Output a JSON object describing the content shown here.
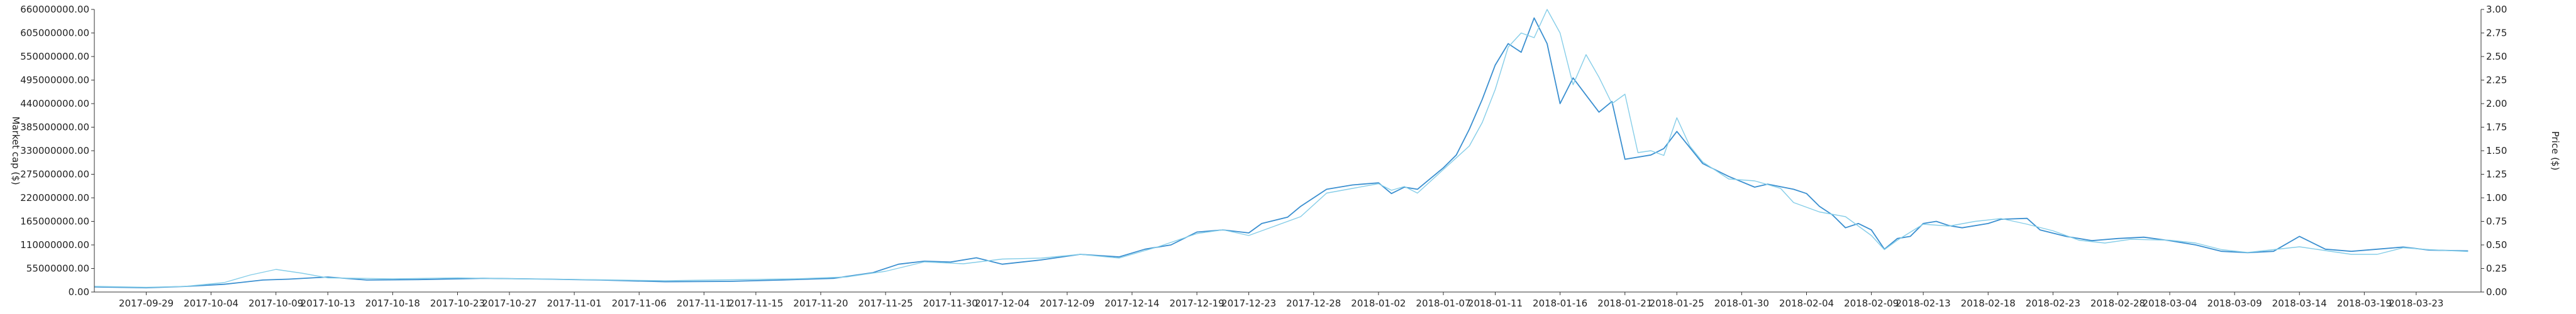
{
  "chart_data": {
    "type": "line",
    "title": "",
    "ylabel_left": "Market cap ($)",
    "ylabel_right": "Price ($)",
    "xlabel": "",
    "x_tick_labels": [
      "2017-09-29",
      "2017-10-04",
      "2017-10-09",
      "2017-10-13",
      "2017-10-18",
      "2017-10-23",
      "2017-10-27",
      "2017-11-01",
      "2017-11-06",
      "2017-11-11",
      "2017-11-15",
      "2017-11-20",
      "2017-11-25",
      "2017-11-30",
      "2017-12-04",
      "2017-12-09",
      "2017-12-14",
      "2017-12-19",
      "2017-12-23",
      "2017-12-28",
      "2018-01-02",
      "2018-01-07",
      "2018-01-11",
      "2018-01-16",
      "2018-01-21",
      "2018-01-25",
      "2018-01-30",
      "2018-02-04",
      "2018-02-09",
      "2018-02-13",
      "2018-02-18",
      "2018-02-23",
      "2018-02-28",
      "2018-03-04",
      "2018-03-09",
      "2018-03-14",
      "2018-03-19",
      "2018-03-23"
    ],
    "y_left_ticks": [
      "0.00",
      "55000000.00",
      "110000000.00",
      "165000000.00",
      "220000000.00",
      "275000000.00",
      "330000000.00",
      "385000000.00",
      "440000000.00",
      "495000000.00",
      "550000000.00",
      "605000000.00",
      "660000000.00"
    ],
    "y_right_ticks": [
      "0.00",
      "0.25",
      "0.50",
      "0.75",
      "1.00",
      "1.25",
      "1.50",
      "1.75",
      "2.00",
      "2.25",
      "2.50",
      "2.75",
      "3.00"
    ],
    "x_range": [
      "2017-09-25",
      "2018-03-28"
    ],
    "y_left_range": [
      0,
      660000000
    ],
    "y_right_range": [
      0,
      3.0
    ],
    "grid": false,
    "legend": "none",
    "series": [
      {
        "axis": "left",
        "color": "#3a8fd0",
        "points": [
          [
            "2017-09-25",
            12000000
          ],
          [
            "2017-09-29",
            10000000
          ],
          [
            "2017-10-02",
            13000000
          ],
          [
            "2017-10-05",
            18000000
          ],
          [
            "2017-10-08",
            28000000
          ],
          [
            "2017-10-10",
            30000000
          ],
          [
            "2017-10-13",
            35000000
          ],
          [
            "2017-10-16",
            28000000
          ],
          [
            "2017-10-20",
            29000000
          ],
          [
            "2017-10-25",
            32000000
          ],
          [
            "2017-10-30",
            30000000
          ],
          [
            "2017-11-03",
            28000000
          ],
          [
            "2017-11-08",
            24000000
          ],
          [
            "2017-11-13",
            25000000
          ],
          [
            "2017-11-17",
            28000000
          ],
          [
            "2017-11-21",
            32000000
          ],
          [
            "2017-11-24",
            45000000
          ],
          [
            "2017-11-26",
            65000000
          ],
          [
            "2017-11-28",
            72000000
          ],
          [
            "2017-11-30",
            70000000
          ],
          [
            "2017-12-02",
            80000000
          ],
          [
            "2017-12-04",
            65000000
          ],
          [
            "2017-12-07",
            75000000
          ],
          [
            "2017-12-10",
            88000000
          ],
          [
            "2017-12-13",
            82000000
          ],
          [
            "2017-12-15",
            100000000
          ],
          [
            "2017-12-17",
            110000000
          ],
          [
            "2017-12-19",
            140000000
          ],
          [
            "2017-12-21",
            145000000
          ],
          [
            "2017-12-23",
            138000000
          ],
          [
            "2017-12-24",
            160000000
          ],
          [
            "2017-12-26",
            175000000
          ],
          [
            "2017-12-27",
            200000000
          ],
          [
            "2017-12-29",
            240000000
          ],
          [
            "2017-12-31",
            250000000
          ],
          [
            "2018-01-02",
            255000000
          ],
          [
            "2018-01-03",
            230000000
          ],
          [
            "2018-01-04",
            245000000
          ],
          [
            "2018-01-05",
            240000000
          ],
          [
            "2018-01-06",
            265000000
          ],
          [
            "2018-01-07",
            290000000
          ],
          [
            "2018-01-08",
            320000000
          ],
          [
            "2018-01-09",
            380000000
          ],
          [
            "2018-01-10",
            450000000
          ],
          [
            "2018-01-11",
            530000000
          ],
          [
            "2018-01-12",
            580000000
          ],
          [
            "2018-01-13",
            560000000
          ],
          [
            "2018-01-14",
            640000000
          ],
          [
            "2018-01-15",
            580000000
          ],
          [
            "2018-01-16",
            440000000
          ],
          [
            "2018-01-17",
            500000000
          ],
          [
            "2018-01-18",
            460000000
          ],
          [
            "2018-01-19",
            420000000
          ],
          [
            "2018-01-20",
            445000000
          ],
          [
            "2018-01-21",
            310000000
          ],
          [
            "2018-01-23",
            320000000
          ],
          [
            "2018-01-24",
            335000000
          ],
          [
            "2018-01-25",
            375000000
          ],
          [
            "2018-01-27",
            300000000
          ],
          [
            "2018-01-29",
            270000000
          ],
          [
            "2018-01-31",
            245000000
          ],
          [
            "2018-02-01",
            252000000
          ],
          [
            "2018-02-03",
            240000000
          ],
          [
            "2018-02-04",
            230000000
          ],
          [
            "2018-02-05",
            200000000
          ],
          [
            "2018-02-06",
            180000000
          ],
          [
            "2018-02-07",
            150000000
          ],
          [
            "2018-02-08",
            160000000
          ],
          [
            "2018-02-09",
            145000000
          ],
          [
            "2018-02-10",
            100000000
          ],
          [
            "2018-02-11",
            125000000
          ],
          [
            "2018-02-12",
            130000000
          ],
          [
            "2018-02-13",
            160000000
          ],
          [
            "2018-02-14",
            165000000
          ],
          [
            "2018-02-15",
            155000000
          ],
          [
            "2018-02-16",
            150000000
          ],
          [
            "2018-02-18",
            160000000
          ],
          [
            "2018-02-19",
            170000000
          ],
          [
            "2018-02-21",
            172000000
          ],
          [
            "2018-02-22",
            145000000
          ],
          [
            "2018-02-24",
            130000000
          ],
          [
            "2018-02-26",
            120000000
          ],
          [
            "2018-02-28",
            125000000
          ],
          [
            "2018-03-02",
            128000000
          ],
          [
            "2018-03-04",
            120000000
          ],
          [
            "2018-03-06",
            110000000
          ],
          [
            "2018-03-08",
            95000000
          ],
          [
            "2018-03-10",
            92000000
          ],
          [
            "2018-03-12",
            95000000
          ],
          [
            "2018-03-14",
            130000000
          ],
          [
            "2018-03-16",
            100000000
          ],
          [
            "2018-03-18",
            95000000
          ],
          [
            "2018-03-20",
            100000000
          ],
          [
            "2018-03-22",
            105000000
          ],
          [
            "2018-03-24",
            98000000
          ],
          [
            "2018-03-27",
            96000000
          ]
        ]
      },
      {
        "axis": "right",
        "color": "#85cde8",
        "points": [
          [
            "2017-09-25",
            0.06
          ],
          [
            "2017-09-29",
            0.05
          ],
          [
            "2017-10-02",
            0.06
          ],
          [
            "2017-10-05",
            0.1
          ],
          [
            "2017-10-07",
            0.18
          ],
          [
            "2017-10-09",
            0.24
          ],
          [
            "2017-10-11",
            0.2
          ],
          [
            "2017-10-13",
            0.15
          ],
          [
            "2017-10-18",
            0.14
          ],
          [
            "2017-10-23",
            0.15
          ],
          [
            "2017-10-28",
            0.14
          ],
          [
            "2017-11-03",
            0.13
          ],
          [
            "2017-11-08",
            0.12
          ],
          [
            "2017-11-13",
            0.13
          ],
          [
            "2017-11-18",
            0.14
          ],
          [
            "2017-11-22",
            0.16
          ],
          [
            "2017-11-25",
            0.22
          ],
          [
            "2017-11-28",
            0.32
          ],
          [
            "2017-12-01",
            0.3
          ],
          [
            "2017-12-04",
            0.35
          ],
          [
            "2017-12-07",
            0.36
          ],
          [
            "2017-12-10",
            0.4
          ],
          [
            "2017-12-13",
            0.36
          ],
          [
            "2017-12-16",
            0.48
          ],
          [
            "2017-12-19",
            0.62
          ],
          [
            "2017-12-21",
            0.66
          ],
          [
            "2017-12-23",
            0.6
          ],
          [
            "2017-12-25",
            0.7
          ],
          [
            "2017-12-27",
            0.8
          ],
          [
            "2017-12-29",
            1.05
          ],
          [
            "2017-12-31",
            1.1
          ],
          [
            "2018-01-02",
            1.15
          ],
          [
            "2018-01-03",
            1.08
          ],
          [
            "2018-01-04",
            1.12
          ],
          [
            "2018-01-05",
            1.05
          ],
          [
            "2018-01-07",
            1.3
          ],
          [
            "2018-01-09",
            1.55
          ],
          [
            "2018-01-10",
            1.8
          ],
          [
            "2018-01-11",
            2.15
          ],
          [
            "2018-01-12",
            2.6
          ],
          [
            "2018-01-13",
            2.75
          ],
          [
            "2018-01-14",
            2.7
          ],
          [
            "2018-01-15",
            3.0
          ],
          [
            "2018-01-16",
            2.75
          ],
          [
            "2018-01-17",
            2.2
          ],
          [
            "2018-01-18",
            2.52
          ],
          [
            "2018-01-19",
            2.28
          ],
          [
            "2018-01-20",
            2.0
          ],
          [
            "2018-01-21",
            2.1
          ],
          [
            "2018-01-22",
            1.48
          ],
          [
            "2018-01-23",
            1.5
          ],
          [
            "2018-01-24",
            1.45
          ],
          [
            "2018-01-25",
            1.85
          ],
          [
            "2018-01-26",
            1.55
          ],
          [
            "2018-01-27",
            1.38
          ],
          [
            "2018-01-29",
            1.2
          ],
          [
            "2018-01-31",
            1.18
          ],
          [
            "2018-02-02",
            1.1
          ],
          [
            "2018-02-03",
            0.95
          ],
          [
            "2018-02-05",
            0.85
          ],
          [
            "2018-02-07",
            0.8
          ],
          [
            "2018-02-09",
            0.6
          ],
          [
            "2018-02-10",
            0.45
          ],
          [
            "2018-02-11",
            0.55
          ],
          [
            "2018-02-13",
            0.72
          ],
          [
            "2018-02-15",
            0.7
          ],
          [
            "2018-02-17",
            0.75
          ],
          [
            "2018-02-19",
            0.78
          ],
          [
            "2018-02-21",
            0.72
          ],
          [
            "2018-02-23",
            0.65
          ],
          [
            "2018-02-25",
            0.55
          ],
          [
            "2018-02-27",
            0.52
          ],
          [
            "2018-03-01",
            0.56
          ],
          [
            "2018-03-04",
            0.55
          ],
          [
            "2018-03-06",
            0.52
          ],
          [
            "2018-03-08",
            0.45
          ],
          [
            "2018-03-10",
            0.42
          ],
          [
            "2018-03-12",
            0.45
          ],
          [
            "2018-03-14",
            0.48
          ],
          [
            "2018-03-16",
            0.44
          ],
          [
            "2018-03-18",
            0.4
          ],
          [
            "2018-03-20",
            0.4
          ],
          [
            "2018-03-22",
            0.47
          ],
          [
            "2018-03-24",
            0.45
          ],
          [
            "2018-03-27",
            0.43
          ]
        ]
      }
    ]
  }
}
